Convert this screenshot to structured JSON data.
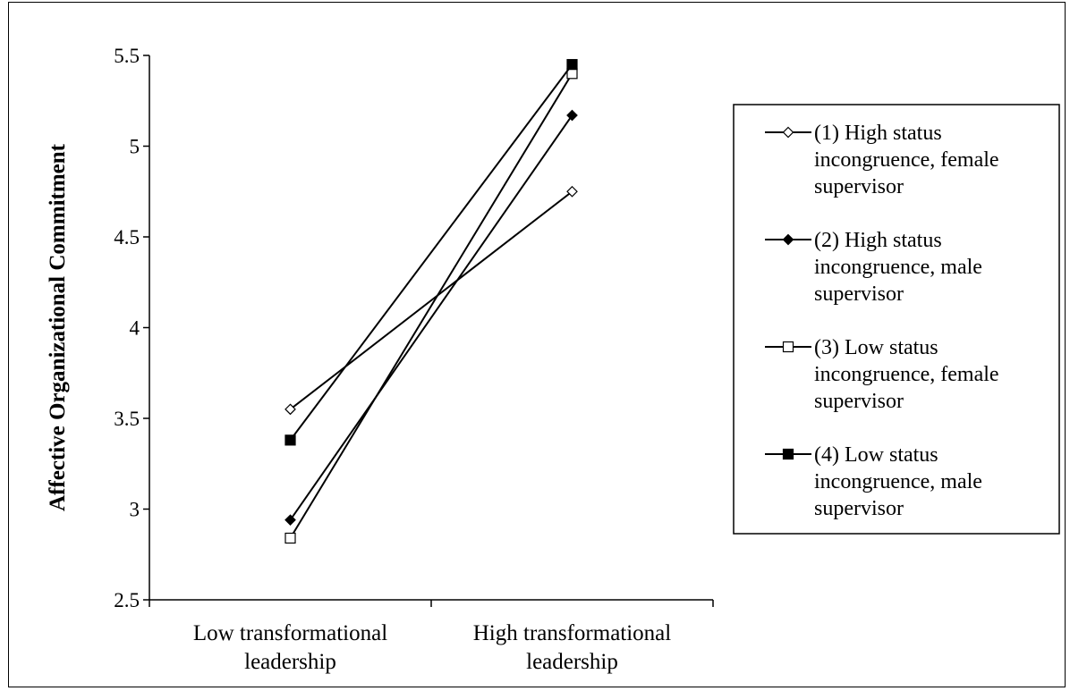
{
  "chart_data": {
    "type": "line",
    "categories": [
      [
        "Low transformational",
        "leadership"
      ],
      [
        "High transformational",
        "leadership"
      ]
    ],
    "ylabel": "Affective Organizational Commitment",
    "xlabel": "",
    "ylim": [
      2.5,
      5.5
    ],
    "yticks": [
      "2.5",
      "3",
      "3.5",
      "4",
      "4.5",
      "5",
      "5.5"
    ],
    "legend_position": "right",
    "grid": false,
    "series": [
      {
        "name": "(1) High status incongruence, female supervisor",
        "name_lines": [
          "(1) High status",
          "incongruence, female",
          "supervisor"
        ],
        "values": [
          3.55,
          4.75
        ],
        "marker": "diamond-open"
      },
      {
        "name": "(2) High status incongruence, male supervisor",
        "name_lines": [
          "(2) High status",
          "incongruence, male",
          "supervisor"
        ],
        "values": [
          2.94,
          5.17
        ],
        "marker": "diamond-filled"
      },
      {
        "name": "(3) Low status incongruence, female supervisor",
        "name_lines": [
          "(3) Low status",
          "incongruence, female",
          "supervisor"
        ],
        "values": [
          2.84,
          5.4
        ],
        "marker": "square-open"
      },
      {
        "name": "(4) Low status incongruence, male supervisor",
        "name_lines": [
          "(4) Low status",
          "incongruence, male",
          "supervisor"
        ],
        "values": [
          3.38,
          5.45
        ],
        "marker": "square-filled"
      }
    ]
  }
}
